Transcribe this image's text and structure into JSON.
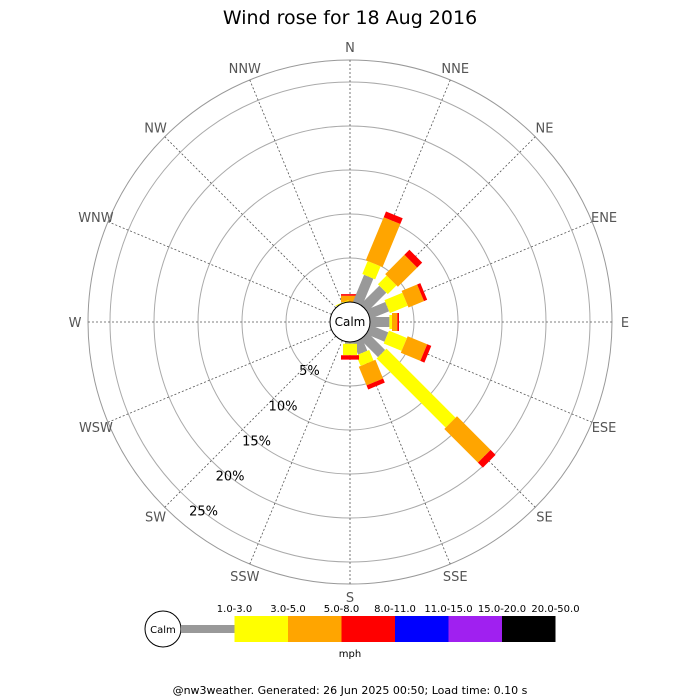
{
  "title": "Wind rose for 18 Aug 2016",
  "footer": "@nw3weather. Generated: 26 Jun 2025 00:50; Load time: 0.10 s",
  "calm_label": "Calm",
  "units": "mph",
  "chart_data": {
    "type": "wind-rose",
    "title": "Wind rose for 18 Aug 2016",
    "directions": [
      "N",
      "NNE",
      "NE",
      "ENE",
      "E",
      "ESE",
      "SE",
      "SSE",
      "S",
      "SSW",
      "SW",
      "WSW",
      "W",
      "WNW",
      "NW",
      "NNW"
    ],
    "ring_labels": [
      "5%",
      "10%",
      "15%",
      "20%",
      "25%"
    ],
    "ring_values": [
      5,
      10,
      15,
      20,
      25
    ],
    "max_percent": 27.5,
    "speed_bins": [
      "1.0-3.0",
      "3.0-5.0",
      "5.0-8.0",
      "8.0-11.0",
      "11.0-15.0",
      "15.0-20.0",
      "20.0-50.0"
    ],
    "bin_colors": [
      "#999999",
      "#ffff00",
      "#ffa500",
      "#ff0000",
      "#0000ff",
      "#a020f0",
      "#000000"
    ],
    "series": [
      {
        "name": "1.0-3.0",
        "values": [
          0.0,
          3.3,
          3.0,
          2.3,
          2.2,
          2.2,
          2.8,
          1.5,
          0.2,
          0.0,
          0.0,
          0.0,
          0.0,
          0.0,
          0.0,
          0.0
        ]
      },
      {
        "name": "3.0-5.0",
        "values": [
          0.0,
          1.6,
          1.4,
          2.2,
          0.3,
          2.2,
          11.1,
          1.3,
          1.3,
          0.0,
          0.0,
          0.0,
          0.0,
          0.0,
          0.0,
          0.1
        ]
      },
      {
        "name": "5.0-8.0",
        "values": [
          0.7,
          5.3,
          3.1,
          1.9,
          0.6,
          2.4,
          5.4,
          2.3,
          0.0,
          0.0,
          0.0,
          0.0,
          0.0,
          0.0,
          0.0,
          0.0
        ]
      },
      {
        "name": "8.0-11.0",
        "values": [
          0.2,
          0.7,
          0.8,
          0.4,
          0.2,
          0.5,
          0.8,
          0.5,
          0.5,
          0.0,
          0.0,
          0.0,
          0.0,
          0.0,
          0.0,
          0.0
        ]
      },
      {
        "name": "11.0-15.0",
        "values": [
          0,
          0,
          0,
          0,
          0,
          0,
          0,
          0,
          0,
          0,
          0,
          0,
          0,
          0,
          0,
          0
        ]
      },
      {
        "name": "15.0-20.0",
        "values": [
          0,
          0,
          0,
          0,
          0,
          0,
          0,
          0,
          0,
          0,
          0,
          0,
          0,
          0,
          0,
          0
        ]
      },
      {
        "name": "20.0-50.0",
        "values": [
          0,
          0,
          0,
          0,
          0,
          0,
          0,
          0,
          0,
          0,
          0,
          0,
          0,
          0,
          0,
          0
        ]
      }
    ],
    "grid": true
  }
}
